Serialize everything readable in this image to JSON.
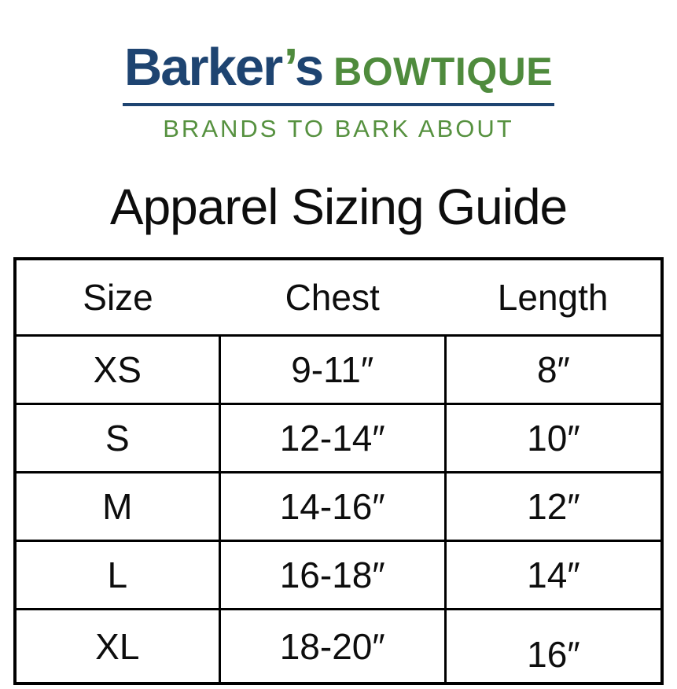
{
  "logo": {
    "name_prefix": "Barker",
    "apostrophe": "’",
    "name_suffix": "s",
    "wordmark_secondary": "BOWTIQUE",
    "tagline": "BRANDS TO BARK ABOUT"
  },
  "title": "Apparel Sizing Guide",
  "size_table": {
    "headers": [
      "Size",
      "Chest",
      "Length"
    ],
    "rows": [
      {
        "size": "XS",
        "chest": "9-11″",
        "length": "8″"
      },
      {
        "size": "S",
        "chest": "12-14″",
        "length": "10″"
      },
      {
        "size": "M",
        "chest": "14-16″",
        "length": "12″"
      },
      {
        "size": "L",
        "chest": "16-18″",
        "length": "14″"
      },
      {
        "size": "XL",
        "chest": "18-20″",
        "length": "16″"
      }
    ]
  },
  "colors": {
    "navy": "#1e4471",
    "green": "#4f8b3d",
    "tagline_green": "#56913f",
    "border": "#000000"
  }
}
